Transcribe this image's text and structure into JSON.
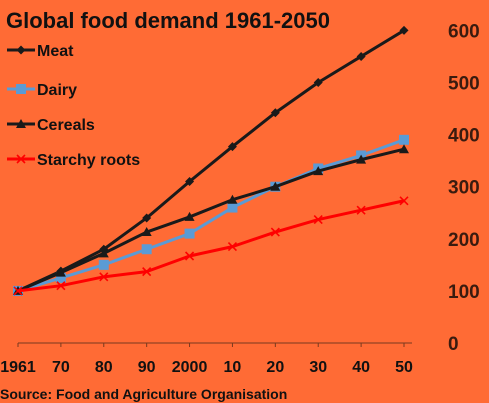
{
  "chart_data": {
    "type": "line",
    "title": "Global food demand 1961-2050",
    "source": "Source: Food and Agriculture Organisation",
    "x": [
      1961,
      1970,
      1980,
      1990,
      2000,
      2010,
      2020,
      2030,
      2040,
      2050
    ],
    "x_tick_labels": [
      "1961",
      "70",
      "80",
      "90",
      "2000",
      "10",
      "20",
      "30",
      "40",
      "50"
    ],
    "y_ticks": [
      0,
      100,
      200,
      300,
      400,
      500,
      600
    ],
    "ylim": [
      0,
      620
    ],
    "y_axis_side": "right",
    "grid": false,
    "legend_position": "top-left",
    "series": [
      {
        "name": "Meat",
        "color": "#1A1A1A",
        "marker": "diamond",
        "values": [
          100,
          138,
          180,
          240,
          310,
          377,
          442,
          500,
          550,
          600
        ]
      },
      {
        "name": "Dairy",
        "color": "#5B9BD5",
        "marker": "square",
        "values": [
          100,
          125,
          150,
          180,
          210,
          260,
          300,
          335,
          360,
          390
        ]
      },
      {
        "name": "Cereals",
        "color": "#1A1A1A",
        "marker": "triangle",
        "values": [
          100,
          135,
          172,
          213,
          242,
          275,
          300,
          330,
          352,
          372
        ]
      },
      {
        "name": "Starchy roots",
        "color": "#FF0000",
        "marker": "x",
        "values": [
          100,
          110,
          127,
          137,
          167,
          185,
          213,
          237,
          255,
          273
        ]
      }
    ]
  }
}
